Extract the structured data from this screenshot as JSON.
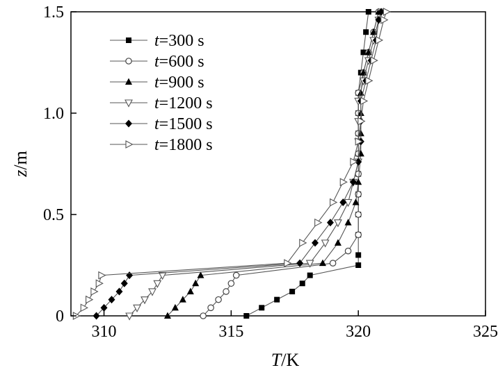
{
  "chart_data": {
    "type": "line",
    "title": "",
    "xlabel": {
      "symbol": "T",
      "unit": "/K"
    },
    "ylabel": {
      "symbol": "z",
      "unit": "/m"
    },
    "xlim": [
      308.7,
      325
    ],
    "ylim": [
      0,
      1.5
    ],
    "xticks": [
      310,
      315,
      320,
      325
    ],
    "xtick_labels": [
      "310",
      "315",
      "320",
      "325"
    ],
    "yticks": [
      0,
      0.5,
      1.0,
      1.5
    ],
    "ytick_labels": [
      "0",
      "0.5",
      "1.0",
      "1.5"
    ],
    "grid": false,
    "legend_position": "top-left",
    "series": [
      {
        "name": "t=300 s",
        "var": "t",
        "rest": "=300 s",
        "marker": "square",
        "points": [
          [
            315.6,
            0.0
          ],
          [
            316.2,
            0.04
          ],
          [
            316.8,
            0.08
          ],
          [
            317.4,
            0.12
          ],
          [
            317.8,
            0.16
          ],
          [
            318.1,
            0.2
          ],
          [
            320.0,
            0.25
          ],
          [
            320.0,
            0.3
          ],
          [
            320.0,
            0.4
          ],
          [
            320.0,
            0.5
          ],
          [
            320.0,
            0.6
          ],
          [
            320.0,
            0.7
          ],
          [
            320.0,
            0.8
          ],
          [
            320.0,
            0.9
          ],
          [
            320.0,
            1.0
          ],
          [
            320.0,
            1.1
          ],
          [
            320.1,
            1.2
          ],
          [
            320.2,
            1.3
          ],
          [
            320.3,
            1.4
          ],
          [
            320.4,
            1.5
          ]
        ]
      },
      {
        "name": "t=600 s",
        "var": "t",
        "rest": "=600 s",
        "marker": "circle",
        "points": [
          [
            313.9,
            0.0
          ],
          [
            314.2,
            0.04
          ],
          [
            314.5,
            0.08
          ],
          [
            314.8,
            0.12
          ],
          [
            315.0,
            0.16
          ],
          [
            315.2,
            0.2
          ],
          [
            319.0,
            0.26
          ],
          [
            319.6,
            0.32
          ],
          [
            320.0,
            0.4
          ],
          [
            320.0,
            0.5
          ],
          [
            320.0,
            0.6
          ],
          [
            320.0,
            0.7
          ],
          [
            320.0,
            0.8
          ],
          [
            320.0,
            0.9
          ],
          [
            320.0,
            1.0
          ],
          [
            320.0,
            1.1
          ],
          [
            320.2,
            1.2
          ],
          [
            320.4,
            1.3
          ],
          [
            320.6,
            1.4
          ],
          [
            320.8,
            1.5
          ]
        ]
      },
      {
        "name": "t=900 s",
        "var": "t",
        "rest": "=900 s",
        "marker": "triangle-up",
        "points": [
          [
            312.5,
            0.0
          ],
          [
            312.8,
            0.04
          ],
          [
            313.1,
            0.08
          ],
          [
            313.4,
            0.12
          ],
          [
            313.6,
            0.16
          ],
          [
            313.8,
            0.2
          ],
          [
            318.6,
            0.26
          ],
          [
            319.2,
            0.36
          ],
          [
            319.6,
            0.46
          ],
          [
            319.9,
            0.56
          ],
          [
            320.0,
            0.66
          ],
          [
            320.1,
            0.8
          ],
          [
            320.1,
            0.9
          ],
          [
            320.1,
            1.0
          ],
          [
            320.1,
            1.1
          ],
          [
            320.2,
            1.2
          ],
          [
            320.4,
            1.3
          ],
          [
            320.6,
            1.4
          ],
          [
            320.8,
            1.5
          ]
        ]
      },
      {
        "name": "t=1200 s",
        "var": "t",
        "rest": "=1200 s",
        "marker": "triangle-down",
        "points": [
          [
            311.0,
            0.0
          ],
          [
            311.3,
            0.04
          ],
          [
            311.6,
            0.08
          ],
          [
            311.9,
            0.12
          ],
          [
            312.1,
            0.16
          ],
          [
            312.3,
            0.2
          ],
          [
            318.1,
            0.26
          ],
          [
            318.7,
            0.36
          ],
          [
            319.2,
            0.46
          ],
          [
            319.6,
            0.56
          ],
          [
            319.8,
            0.66
          ],
          [
            320.0,
            0.76
          ],
          [
            320.0,
            0.86
          ],
          [
            320.0,
            0.96
          ],
          [
            320.0,
            1.06
          ],
          [
            320.2,
            1.16
          ],
          [
            320.4,
            1.26
          ],
          [
            320.6,
            1.36
          ],
          [
            320.8,
            1.46
          ],
          [
            320.9,
            1.5
          ]
        ]
      },
      {
        "name": "t=1500 s",
        "var": "t",
        "rest": "=1500 s",
        "marker": "diamond",
        "points": [
          [
            309.7,
            0.0
          ],
          [
            310.0,
            0.04
          ],
          [
            310.3,
            0.08
          ],
          [
            310.6,
            0.12
          ],
          [
            310.8,
            0.16
          ],
          [
            311.0,
            0.2
          ],
          [
            317.7,
            0.26
          ],
          [
            318.3,
            0.36
          ],
          [
            318.9,
            0.46
          ],
          [
            319.4,
            0.56
          ],
          [
            319.8,
            0.66
          ],
          [
            320.0,
            0.76
          ],
          [
            320.1,
            0.86
          ],
          [
            320.1,
            0.96
          ],
          [
            320.1,
            1.06
          ],
          [
            320.3,
            1.16
          ],
          [
            320.5,
            1.26
          ],
          [
            320.7,
            1.36
          ],
          [
            320.8,
            1.46
          ],
          [
            320.9,
            1.5
          ]
        ]
      },
      {
        "name": "t=1800 s",
        "var": "t",
        "rest": "=1800 s",
        "marker": "triangle-right",
        "points": [
          [
            308.9,
            0.0
          ],
          [
            309.2,
            0.04
          ],
          [
            309.4,
            0.08
          ],
          [
            309.6,
            0.12
          ],
          [
            309.8,
            0.16
          ],
          [
            309.9,
            0.2
          ],
          [
            317.2,
            0.26
          ],
          [
            317.8,
            0.36
          ],
          [
            318.4,
            0.46
          ],
          [
            319.0,
            0.56
          ],
          [
            319.4,
            0.66
          ],
          [
            319.8,
            0.76
          ],
          [
            320.0,
            0.86
          ],
          [
            320.1,
            0.96
          ],
          [
            320.2,
            1.06
          ],
          [
            320.4,
            1.16
          ],
          [
            320.6,
            1.26
          ],
          [
            320.8,
            1.36
          ],
          [
            321.0,
            1.46
          ],
          [
            321.1,
            1.5
          ]
        ]
      }
    ]
  }
}
